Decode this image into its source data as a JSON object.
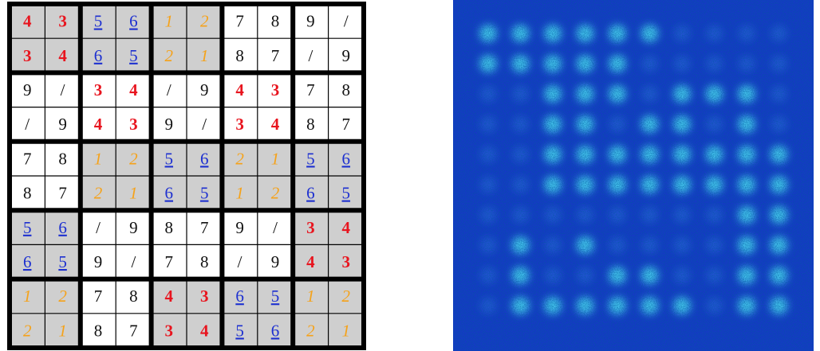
{
  "grid": {
    "rows": [
      [
        "4",
        "3",
        "5",
        "6",
        "1",
        "2",
        "7",
        "8",
        "9",
        "/"
      ],
      [
        "3",
        "4",
        "6",
        "5",
        "2",
        "1",
        "8",
        "7",
        "/",
        "9"
      ],
      [
        "9",
        "/",
        "3",
        "4",
        "/",
        "9",
        "4",
        "3",
        "7",
        "8"
      ],
      [
        "/",
        "9",
        "4",
        "3",
        "9",
        "/",
        "3",
        "4",
        "8",
        "7"
      ],
      [
        "7",
        "8",
        "1",
        "2",
        "5",
        "6",
        "2",
        "1",
        "5",
        "6"
      ],
      [
        "8",
        "7",
        "2",
        "1",
        "6",
        "5",
        "1",
        "2",
        "6",
        "5"
      ],
      [
        "5",
        "6",
        "/",
        "9",
        "8",
        "7",
        "9",
        "/",
        "3",
        "4"
      ],
      [
        "6",
        "5",
        "9",
        "/",
        "7",
        "8",
        "/",
        "9",
        "4",
        "3"
      ],
      [
        "1",
        "2",
        "7",
        "8",
        "4",
        "3",
        "6",
        "5",
        "1",
        "2"
      ],
      [
        "2",
        "1",
        "8",
        "7",
        "3",
        "4",
        "5",
        "6",
        "2",
        "1"
      ]
    ],
    "block_styles": [
      [
        "red",
        "blue",
        "orange",
        "plain",
        "plain"
      ],
      [
        "plain",
        "red",
        "plain",
        "red",
        "plain"
      ],
      [
        "plain",
        "orange",
        "blue",
        "orange",
        "blue"
      ],
      [
        "blue",
        "plain",
        "plain",
        "plain",
        "red"
      ],
      [
        "orange",
        "plain",
        "red",
        "blue",
        "orange"
      ]
    ],
    "block_shaded": [
      [
        true,
        true,
        true,
        false,
        false
      ],
      [
        false,
        false,
        false,
        false,
        false
      ],
      [
        false,
        true,
        true,
        true,
        true
      ],
      [
        true,
        false,
        false,
        false,
        true
      ],
      [
        true,
        false,
        true,
        true,
        true
      ]
    ]
  }
}
